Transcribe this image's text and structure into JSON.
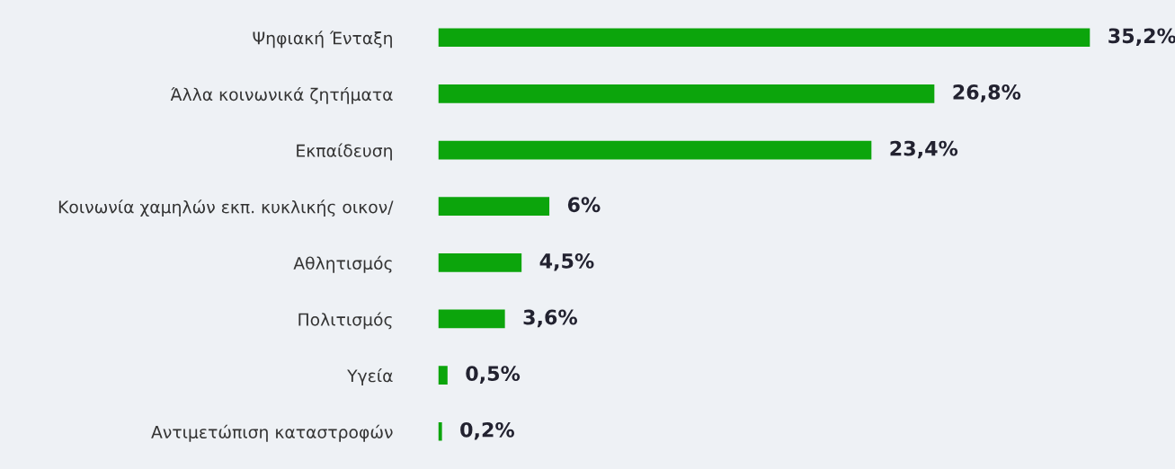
{
  "chart_data": {
    "type": "bar",
    "orientation": "horizontal",
    "color": "#0ca50c",
    "categories": [
      "Ψηφιακή Ένταξη",
      "Άλλα κοινωνικά ζητήματα",
      "Εκπαίδευση",
      "Κοινωνία χαμηλών εκπ. κυκλικής οικον/",
      "Αθλητισμός",
      "Πολιτισμός",
      "Υγεία",
      "Αντιμετώπιση καταστροφών"
    ],
    "values": [
      35.2,
      26.8,
      23.4,
      6,
      4.5,
      3.6,
      0.5,
      0.2
    ],
    "value_labels": [
      "35,2%",
      "26,8%",
      "23,4%",
      "6%",
      "4,5%",
      "3,6%",
      "0,5%",
      "0,2%"
    ],
    "grid": false,
    "legend": false
  }
}
